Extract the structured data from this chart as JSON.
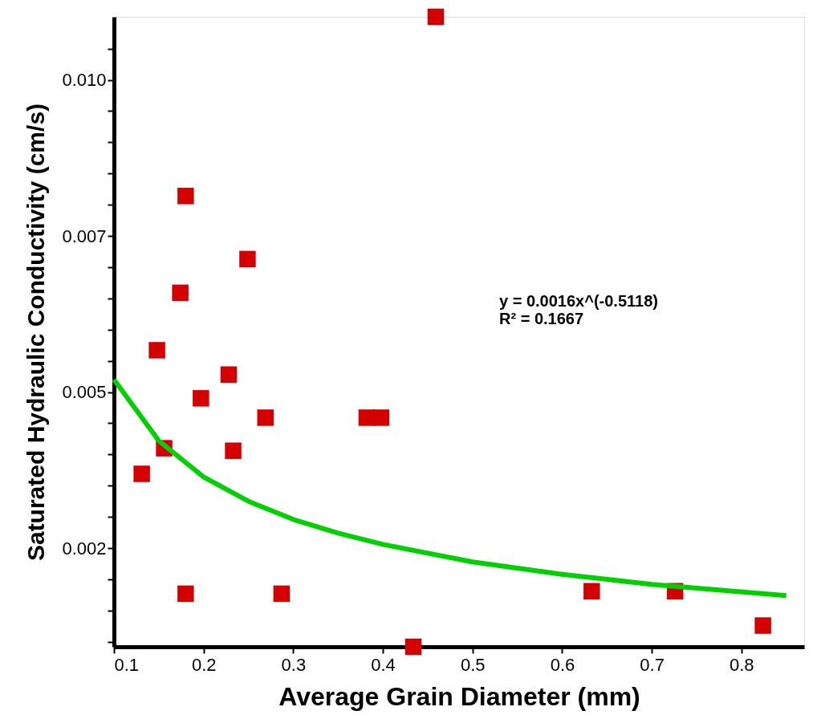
{
  "chart_data": {
    "type": "scatter",
    "xlabel": "Average Grain Diameter (mm)",
    "ylabel": "Saturated Hydraulic Conductivity (cm/s)",
    "xlim": [
      0.1,
      0.87
    ],
    "xticks": [
      0.1,
      0.2,
      0.3,
      0.4,
      0.5,
      0.6,
      0.7,
      0.8
    ],
    "ylim": [
      0.00092,
      0.01101
    ],
    "yticks": [
      {
        "value": 0.001,
        "label": null
      },
      {
        "value": 0.0015,
        "label": null
      },
      {
        "value": 0.002,
        "label": null
      },
      {
        "value": 0.0025,
        "label": "0.002"
      },
      {
        "value": 0.003,
        "label": null
      },
      {
        "value": 0.0035,
        "label": null
      },
      {
        "value": 0.004,
        "label": null
      },
      {
        "value": 0.0045,
        "label": null
      },
      {
        "value": 0.005,
        "label": "0.005"
      },
      {
        "value": 0.0055,
        "label": null
      },
      {
        "value": 0.006,
        "label": null
      },
      {
        "value": 0.0065,
        "label": null
      },
      {
        "value": 0.007,
        "label": null
      },
      {
        "value": 0.0075,
        "label": "0.007"
      },
      {
        "value": 0.008,
        "label": null
      },
      {
        "value": 0.0085,
        "label": null
      },
      {
        "value": 0.009,
        "label": null
      },
      {
        "value": 0.0095,
        "label": null
      },
      {
        "value": 0.01,
        "label": "0.010"
      },
      {
        "value": 0.0105,
        "label": null
      }
    ],
    "grid": false,
    "marker": "square",
    "annotations": [
      "y = 0.0016x^(-0.5118)",
      "R² = 0.1667"
    ],
    "series": [
      {
        "color": "#d40000",
        "x": [
          0.131,
          0.148,
          0.156,
          0.174,
          0.18,
          0.18,
          0.197,
          0.228,
          0.233,
          0.249,
          0.269,
          0.287,
          0.382,
          0.398,
          0.434,
          0.459,
          0.633,
          0.726,
          0.824
        ],
        "values": [
          0.00369,
          0.00567,
          0.0041,
          0.00659,
          0.00814,
          0.00177,
          0.0049,
          0.00528,
          0.00406,
          0.00713,
          0.00459,
          0.00177,
          0.00459,
          0.00459,
          0.00092,
          0.01101,
          0.00181,
          0.00181,
          0.00126
        ]
      },
      {
        "type": "line",
        "marker": "none",
        "color": "#00d000",
        "x": [
          0.1,
          0.15,
          0.2,
          0.25,
          0.3,
          0.35,
          0.4,
          0.5,
          0.6,
          0.7,
          0.85
        ],
        "values": [
          0.0052,
          0.00422,
          0.00364,
          0.00325,
          0.00296,
          0.00274,
          0.00256,
          0.00228,
          0.00208,
          0.00192,
          0.00174
        ]
      }
    ]
  }
}
